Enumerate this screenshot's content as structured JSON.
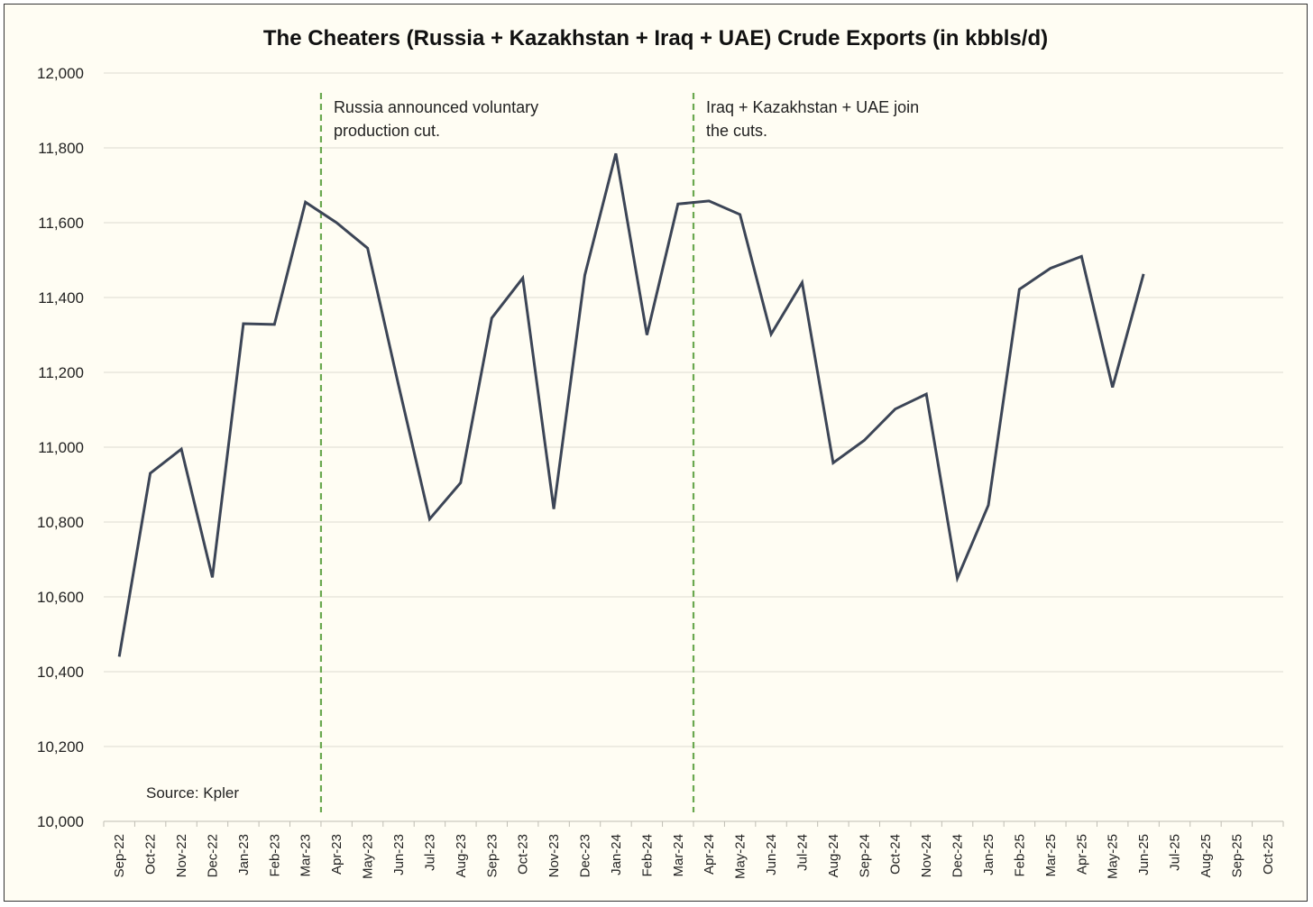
{
  "chart_data": {
    "type": "line",
    "title": "The Cheaters (Russia + Kazakhstan + Iraq + UAE) Crude Exports (in kbbls/d)",
    "xlabel": "",
    "ylabel": "",
    "ylim": [
      10000,
      12000
    ],
    "yticks": [
      10000,
      10200,
      10400,
      10600,
      10800,
      11000,
      11200,
      11400,
      11600,
      11800,
      12000
    ],
    "ytick_labels": [
      "10,000",
      "10,200",
      "10,400",
      "10,600",
      "10,800",
      "11,000",
      "11,200",
      "11,400",
      "11,600",
      "11,800",
      "12,000"
    ],
    "grid": true,
    "categories": [
      "Sep-22",
      "Oct-22",
      "Nov-22",
      "Dec-22",
      "Jan-23",
      "Feb-23",
      "Mar-23",
      "Apr-23",
      "May-23",
      "Jun-23",
      "Jul-23",
      "Aug-23",
      "Sep-23",
      "Oct-23",
      "Nov-23",
      "Dec-23",
      "Jan-24",
      "Feb-24",
      "Mar-24",
      "Apr-24",
      "May-24",
      "Jun-24",
      "Jul-24",
      "Aug-24",
      "Sep-24",
      "Oct-24",
      "Nov-24",
      "Dec-24",
      "Jan-25",
      "Feb-25",
      "Mar-25",
      "Apr-25",
      "May-25",
      "Jun-25",
      "Jul-25",
      "Aug-25",
      "Sep-25",
      "Oct-25"
    ],
    "series": [
      {
        "name": "Crude Exports",
        "color": "#3c4556",
        "values": [
          10440,
          10930,
          10995,
          10652,
          11330,
          11328,
          11655,
          11600,
          11532,
          11165,
          10808,
          10905,
          11345,
          11452,
          10835,
          11460,
          11785,
          11300,
          11650,
          11658,
          11622,
          11302,
          11440,
          10958,
          11018,
          11102,
          11142,
          10650,
          10845,
          11422,
          11478,
          11510,
          11160,
          11463,
          null,
          null,
          null,
          null
        ]
      }
    ],
    "annotations": [
      {
        "type": "vline",
        "x": "Apr-23",
        "color": "#6aa84f",
        "lines": [
          "Russia announced voluntary",
          "production cut."
        ]
      },
      {
        "type": "vline",
        "x": "Apr-24",
        "color": "#6aa84f",
        "lines": [
          "Iraq + Kazakhstan + UAE join",
          "the cuts."
        ]
      }
    ],
    "source_note": "Source: Kpler"
  }
}
